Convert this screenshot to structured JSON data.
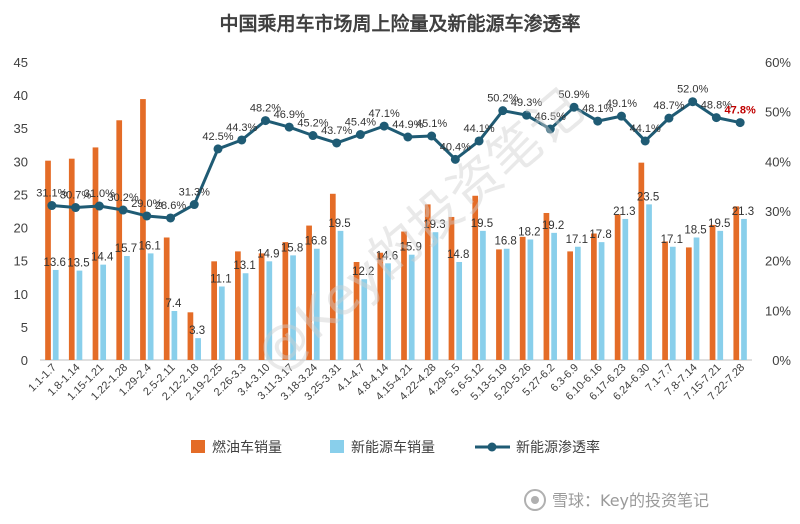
{
  "chart_data": {
    "type": "bar",
    "title": "中国乘用车市场周上险量及新能源车渗透率",
    "categories": [
      "1.1-1.7",
      "1.8-1.14",
      "1.15-1.21",
      "1.22-1.28",
      "1.29-2.4",
      "2.5-2.11",
      "2.12-2.18",
      "2.19-2.25",
      "2.26-3.3",
      "3.4-3.10",
      "3.11-3.17",
      "3.18-3.24",
      "3.25-3.31",
      "4.1-4.7",
      "4.8-4.14",
      "4.15-4.21",
      "4.22-4.28",
      "4.29-5.5",
      "5.6-5.12",
      "5.13-5.19",
      "5.20-5.26",
      "5.27-6.2",
      "6.3-6.9",
      "6.10-6.16",
      "6.17-6.23",
      "6.24-6.30",
      "7.1-7.7",
      "7.8-7.14",
      "7.15-7.21",
      "7.22-7.28"
    ],
    "series": [
      {
        "name": "燃油车销量",
        "axis": "left",
        "color": "#E46C27",
        "values": [
          30.1,
          30.4,
          32.1,
          36.2,
          39.4,
          18.5,
          7.2,
          14.9,
          16.4,
          16.1,
          17.8,
          20.3,
          25.1,
          14.8,
          16.2,
          19.4,
          23.5,
          21.6,
          24.8,
          16.7,
          18.6,
          22.2,
          16.4,
          19.1,
          22.0,
          29.8,
          17.9,
          17.0,
          20.4,
          23.2
        ],
        "labels": []
      },
      {
        "name": "新能源车销量",
        "axis": "left",
        "color": "#89CFEB",
        "values": [
          13.6,
          13.5,
          14.4,
          15.7,
          16.1,
          7.4,
          3.3,
          11.1,
          13.1,
          14.9,
          15.8,
          16.8,
          19.5,
          12.2,
          14.6,
          15.9,
          19.3,
          14.8,
          19.5,
          16.8,
          18.2,
          19.2,
          17.1,
          17.8,
          21.3,
          23.5,
          17.1,
          18.5,
          19.5,
          21.3
        ],
        "labels": [
          "13.6",
          "13.5",
          "14.4",
          "15.7",
          "16.1",
          "7.4",
          "3.3",
          "11.1",
          "13.1",
          "14.9",
          "15.8",
          "16.8",
          "19.5",
          "12.2",
          "14.6",
          "15.9",
          "19.3",
          "14.8",
          "19.5",
          "16.8",
          "18.2",
          "19.2",
          "17.1",
          "17.8",
          "21.3",
          "23.5",
          "17.1",
          "18.5",
          "19.5",
          "21.3"
        ]
      },
      {
        "name": "新能源渗透率",
        "axis": "right",
        "type": "line",
        "color": "#1F5B74",
        "values": [
          31.1,
          30.7,
          31.0,
          30.2,
          29.0,
          28.6,
          31.3,
          42.5,
          44.3,
          48.2,
          46.9,
          45.2,
          43.7,
          45.4,
          47.1,
          44.9,
          45.1,
          40.4,
          44.1,
          50.2,
          49.3,
          46.5,
          50.9,
          48.1,
          49.1,
          44.1,
          48.7,
          52.0,
          48.8,
          47.8
        ],
        "labels": [
          "31.1%",
          "30.7%",
          "31.0%",
          "30.2%",
          "29.0%",
          "28.6%",
          "31.3%",
          "42.5%",
          "44.3%",
          "48.2%",
          "46.9%",
          "45.2%",
          "43.7%",
          "45.4%",
          "47.1%",
          "44.9%",
          "45.1%",
          "40.4%",
          "44.1%",
          "50.2%",
          "49.3%",
          "46.5%",
          "50.9%",
          "48.1%",
          "49.1%",
          "44.1%",
          "48.7%",
          "52.0%",
          "48.8%",
          "47.8%"
        ],
        "highlight_last_color": "#C00000"
      }
    ],
    "y_left": {
      "ticks": [
        "0",
        "5",
        "10",
        "15",
        "20",
        "25",
        "30",
        "35",
        "40",
        "45"
      ],
      "ylim": [
        0,
        45
      ]
    },
    "y_right": {
      "ticks": [
        "0%",
        "10%",
        "20%",
        "30%",
        "40%",
        "50%",
        "60%"
      ],
      "ylim": [
        0,
        60
      ]
    },
    "grid": false,
    "legend_position": "bottom-center"
  },
  "watermark": "@Key的投资笔记",
  "credit": "雪球：Key的投资笔记"
}
